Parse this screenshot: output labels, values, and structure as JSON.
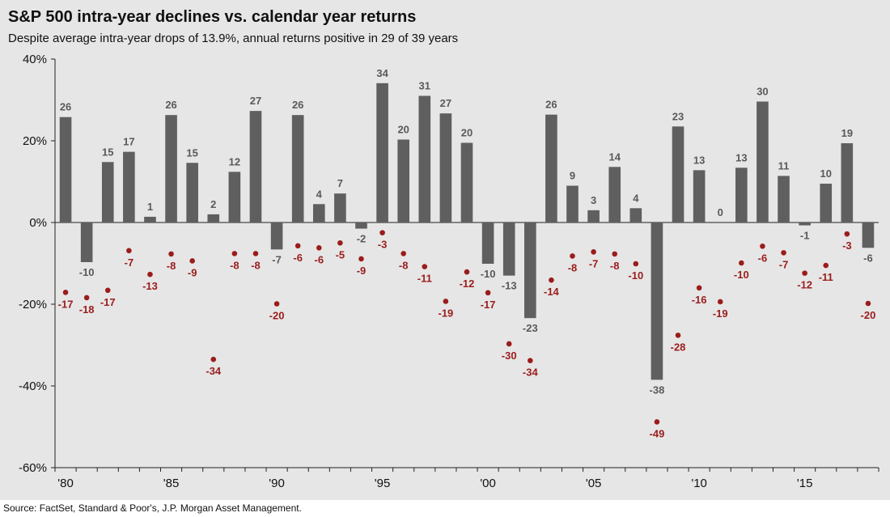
{
  "header": {
    "title": "S&P 500 intra-year declines vs. calendar year returns",
    "subtitle": "Despite average intra-year drops of 13.9%, annual returns positive in 29 of 39 years"
  },
  "footer": {
    "source": "Source: FactSet, Standard & Poor's, J.P. Morgan Asset Management."
  },
  "colors": {
    "panel_bg": "#e6e6e6",
    "bar": "#5f5f5f",
    "bar_label": "#595959",
    "decline_dot": "#9b1c1c",
    "decline_label": "#9b1c1c",
    "axis": "#222222"
  },
  "chart_data": {
    "type": "bar",
    "title": "S&P 500 intra-year declines vs. calendar year returns",
    "subtitle": "Despite average intra-year drops of 13.9%, annual returns positive in 29 of 39 years",
    "xlabel": "",
    "ylabel": "",
    "ylim": [
      -60,
      40
    ],
    "yticks": [
      -60,
      -40,
      -20,
      0,
      20,
      40
    ],
    "ytick_labels": [
      "-60%",
      "-40%",
      "-20%",
      "0%",
      "20%",
      "40%"
    ],
    "x": [
      1980,
      1981,
      1982,
      1983,
      1984,
      1985,
      1986,
      1987,
      1988,
      1989,
      1990,
      1991,
      1992,
      1993,
      1994,
      1995,
      1996,
      1997,
      1998,
      1999,
      2000,
      2001,
      2002,
      2003,
      2004,
      2005,
      2006,
      2007,
      2008,
      2009,
      2010,
      2011,
      2012,
      2013,
      2014,
      2015,
      2016,
      2017,
      2018
    ],
    "xticks": [
      "'80",
      "'85",
      "'90",
      "'95",
      "'00",
      "'05",
      "'10",
      "'15"
    ],
    "xtick_years": [
      1980,
      1985,
      1990,
      1995,
      2000,
      2005,
      2010,
      2015
    ],
    "grid": false,
    "legend": "none",
    "series": [
      {
        "kind": "bar",
        "values": [
          25.8,
          -9.7,
          14.8,
          17.3,
          1.4,
          26.3,
          14.6,
          2.0,
          12.4,
          27.3,
          -6.6,
          26.3,
          4.5,
          7.1,
          -1.5,
          34.1,
          20.3,
          31.0,
          26.7,
          19.5,
          -10.1,
          -13.0,
          -23.4,
          26.4,
          9.0,
          3.0,
          13.6,
          3.5,
          -38.5,
          23.5,
          12.8,
          0.0,
          13.4,
          29.6,
          11.4,
          -0.7,
          9.5,
          19.4,
          -6.2
        ],
        "labels": [
          "26",
          "-10",
          "15",
          "17",
          "1",
          "26",
          "15",
          "2",
          "12",
          "27",
          "-7",
          "26",
          "4",
          "7",
          "-2",
          "34",
          "20",
          "31",
          "27",
          "20",
          "-10",
          "-13",
          "-23",
          "26",
          "9",
          "3",
          "14",
          "4",
          "-38",
          "23",
          "13",
          "0",
          "13",
          "30",
          "11",
          "-1",
          "10",
          "19",
          "-6"
        ]
      },
      {
        "kind": "dot",
        "values": [
          -17.1,
          -18.4,
          -16.6,
          -6.9,
          -12.7,
          -7.7,
          -9.4,
          -33.5,
          -7.6,
          -7.6,
          -19.9,
          -5.7,
          -6.2,
          -5.0,
          -8.9,
          -2.5,
          -7.6,
          -10.8,
          -19.3,
          -12.1,
          -17.2,
          -29.7,
          -33.8,
          -14.1,
          -8.2,
          -7.2,
          -7.7,
          -10.1,
          -48.8,
          -27.6,
          -16.0,
          -19.4,
          -9.9,
          -5.8,
          -7.4,
          -12.4,
          -10.5,
          -2.8,
          -19.8
        ],
        "labels": [
          "-17",
          "-18",
          "-17",
          "-7",
          "-13",
          "-8",
          "-9",
          "-34",
          "-8",
          "-8",
          "-20",
          "-6",
          "-6",
          "-5",
          "-9",
          "-3",
          "-8",
          "-11",
          "-19",
          "-12",
          "-17",
          "-30",
          "-34",
          "-14",
          "-8",
          "-7",
          "-8",
          "-10",
          "-49",
          "-28",
          "-16",
          "-19",
          "-10",
          "-6",
          "-7",
          "-12",
          "-11",
          "-3",
          "-20"
        ]
      }
    ]
  }
}
